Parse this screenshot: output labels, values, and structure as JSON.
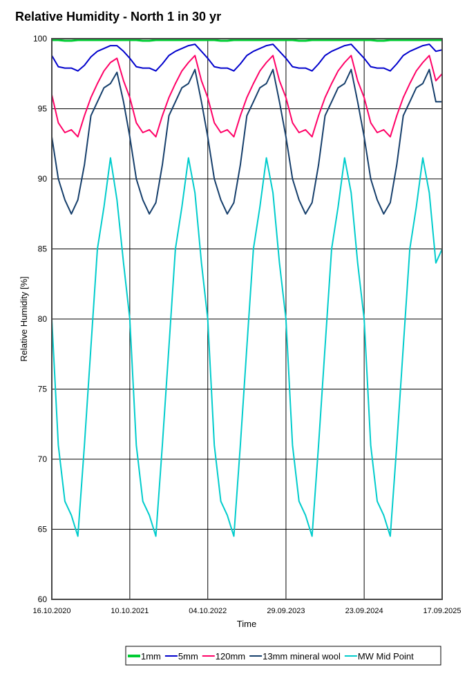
{
  "chart_data": {
    "type": "line",
    "title": "Relative Humidity - North 1 in 30 yr",
    "xlabel": "Time",
    "ylabel": "Relative Humidity [%]",
    "ylim": [
      60,
      100
    ],
    "yticks": [
      60,
      65,
      70,
      75,
      80,
      85,
      90,
      95,
      100
    ],
    "xticks": [
      "16.10.2020",
      "10.10.2021",
      "04.10.2022",
      "29.09.2023",
      "23.09.2024",
      "17.09.2025"
    ],
    "xtick_dates": [
      "2020-10-16",
      "2021-10-10",
      "2022-10-04",
      "2023-09-29",
      "2024-09-23",
      "2025-09-17"
    ],
    "grid": true,
    "legend": "bottom-right",
    "x": [
      "2020-10-16",
      "2020-11-15",
      "2020-12-15",
      "2021-01-14",
      "2021-02-13",
      "2021-03-15",
      "2021-04-14",
      "2021-05-14",
      "2021-06-13",
      "2021-07-13",
      "2021-08-12",
      "2021-09-11",
      "2021-10-10",
      "2021-11-09",
      "2021-12-09",
      "2022-01-08",
      "2022-02-07",
      "2022-03-09",
      "2022-04-08",
      "2022-05-08",
      "2022-06-07",
      "2022-07-07",
      "2022-08-06",
      "2022-09-05",
      "2022-10-04",
      "2022-11-03",
      "2022-12-03",
      "2023-01-02",
      "2023-02-01",
      "2023-03-03",
      "2023-04-02",
      "2023-05-02",
      "2023-06-01",
      "2023-07-01",
      "2023-07-31",
      "2023-08-30",
      "2023-09-29",
      "2023-10-29",
      "2023-11-28",
      "2023-12-28",
      "2024-01-27",
      "2024-02-26",
      "2024-03-27",
      "2024-04-26",
      "2024-05-26",
      "2024-06-25",
      "2024-07-25",
      "2024-08-24",
      "2024-09-23",
      "2024-10-23",
      "2024-11-22",
      "2024-12-22",
      "2025-01-21",
      "2025-02-20",
      "2025-03-22",
      "2025-04-21",
      "2025-05-21",
      "2025-06-20",
      "2025-07-20",
      "2025-08-19",
      "2025-09-17"
    ],
    "series": [
      {
        "name": "1mm",
        "color": "#00cc33",
        "width": 3,
        "values": [
          99.9,
          99.9,
          99.85,
          99.85,
          99.9,
          99.9,
          99.9,
          99.9,
          99.9,
          99.9,
          99.9,
          99.9,
          99.9,
          99.9,
          99.85,
          99.85,
          99.9,
          99.9,
          99.9,
          99.9,
          99.9,
          99.9,
          99.9,
          99.9,
          99.9,
          99.9,
          99.85,
          99.85,
          99.9,
          99.9,
          99.9,
          99.9,
          99.9,
          99.9,
          99.9,
          99.9,
          99.9,
          99.9,
          99.85,
          99.85,
          99.9,
          99.9,
          99.9,
          99.9,
          99.9,
          99.9,
          99.9,
          99.9,
          99.9,
          99.9,
          99.85,
          99.85,
          99.9,
          99.9,
          99.9,
          99.9,
          99.9,
          99.9,
          99.9,
          99.9,
          99.9
        ]
      },
      {
        "name": "5mm",
        "color": "#0000cc",
        "width": 2,
        "values": [
          98.8,
          98,
          97.9,
          97.9,
          97.7,
          98.1,
          98.7,
          99.1,
          99.3,
          99.5,
          99.5,
          99.1,
          98.6,
          98,
          97.9,
          97.9,
          97.7,
          98.2,
          98.8,
          99.1,
          99.3,
          99.5,
          99.6,
          99.1,
          98.6,
          98,
          97.9,
          97.9,
          97.7,
          98.2,
          98.8,
          99.1,
          99.3,
          99.5,
          99.6,
          99.1,
          98.6,
          98,
          97.9,
          97.9,
          97.7,
          98.2,
          98.8,
          99.1,
          99.3,
          99.5,
          99.6,
          99.1,
          98.6,
          98,
          97.9,
          97.9,
          97.7,
          98.2,
          98.8,
          99.1,
          99.3,
          99.5,
          99.6,
          99.1,
          99.2
        ]
      },
      {
        "name": "120mm",
        "color": "#ff0066",
        "width": 2,
        "values": [
          96,
          94,
          93.3,
          93.5,
          93,
          94.5,
          95.8,
          96.8,
          97.7,
          98.3,
          98.6,
          97,
          95.8,
          94,
          93.3,
          93.5,
          93,
          94.5,
          95.8,
          96.8,
          97.7,
          98.3,
          98.8,
          97,
          95.8,
          94,
          93.3,
          93.5,
          93,
          94.5,
          95.8,
          96.8,
          97.7,
          98.3,
          98.8,
          97,
          95.8,
          94,
          93.3,
          93.5,
          93,
          94.5,
          95.8,
          96.8,
          97.7,
          98.3,
          98.8,
          97,
          95.8,
          94,
          93.3,
          93.5,
          93,
          94.5,
          95.8,
          96.8,
          97.7,
          98.3,
          98.8,
          97,
          97.5
        ]
      },
      {
        "name": "13mm mineral wool",
        "color": "#153e6b",
        "width": 2,
        "values": [
          93,
          90,
          88.5,
          87.5,
          88.5,
          91,
          94.5,
          95.5,
          96.5,
          96.8,
          97.6,
          95.5,
          93,
          90,
          88.5,
          87.5,
          88.3,
          91,
          94.5,
          95.5,
          96.5,
          96.8,
          97.8,
          95.5,
          93,
          90,
          88.5,
          87.5,
          88.3,
          91,
          94.5,
          95.5,
          96.5,
          96.8,
          97.8,
          95.5,
          93,
          90,
          88.5,
          87.5,
          88.3,
          91,
          94.5,
          95.5,
          96.5,
          96.8,
          97.8,
          95.5,
          93,
          90,
          88.5,
          87.5,
          88.3,
          91,
          94.5,
          95.5,
          96.5,
          96.8,
          97.8,
          95.5,
          95.5
        ]
      },
      {
        "name": "MW Mid Point",
        "color": "#00cccc",
        "width": 2,
        "values": [
          80,
          71,
          67,
          66,
          64.5,
          71,
          78,
          85,
          88,
          91.5,
          88.5,
          84,
          80,
          71,
          67,
          66,
          64.5,
          71,
          78,
          85,
          88,
          91.5,
          89,
          84,
          80,
          71,
          67,
          66,
          64.5,
          71,
          78,
          85,
          88,
          91.5,
          89,
          84,
          80,
          71,
          67,
          66,
          64.5,
          71,
          78,
          85,
          88,
          91.5,
          89,
          84,
          80,
          71,
          67,
          66,
          64.5,
          71,
          78,
          85,
          88,
          91.5,
          89,
          84,
          85
        ]
      }
    ]
  }
}
